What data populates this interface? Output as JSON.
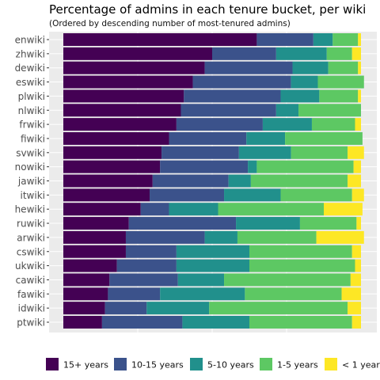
{
  "chart_data": {
    "type": "bar",
    "orientation": "horizontal",
    "stacked": true,
    "title": "Percentage of admins in each tenure bucket, per wiki",
    "subtitle": "(Ordered by descending number of most-tenured admins)",
    "xlabel": "",
    "ylabel": "",
    "xlim": [
      0,
      1
    ],
    "grid": true,
    "legend_position": "bottom",
    "categories": [
      "enwiki",
      "zhwiki",
      "dewiki",
      "eswiki",
      "plwiki",
      "nlwiki",
      "frwiki",
      "fiwiki",
      "svwiki",
      "nowiki",
      "jawiki",
      "itwiki",
      "hewiki",
      "ruwiki",
      "arwiki",
      "cswiki",
      "ukwiki",
      "cawiki",
      "fawiki",
      "idwiki",
      "ptwiki"
    ],
    "series": [
      {
        "name": "15+ years",
        "color": "#440154",
        "values": [
          0.65,
          0.5,
          0.475,
          0.435,
          0.405,
          0.395,
          0.38,
          0.355,
          0.33,
          0.325,
          0.3,
          0.29,
          0.26,
          0.22,
          0.21,
          0.21,
          0.18,
          0.155,
          0.15,
          0.14,
          0.13
        ]
      },
      {
        "name": "10-15 years",
        "color": "#3b528b",
        "values": [
          0.19,
          0.215,
          0.295,
          0.33,
          0.325,
          0.32,
          0.29,
          0.26,
          0.26,
          0.295,
          0.255,
          0.25,
          0.095,
          0.36,
          0.265,
          0.17,
          0.2,
          0.23,
          0.175,
          0.14,
          0.27
        ]
      },
      {
        "name": "5-10 years",
        "color": "#21908c",
        "values": [
          0.065,
          0.17,
          0.12,
          0.09,
          0.13,
          0.075,
          0.165,
          0.13,
          0.175,
          0.03,
          0.075,
          0.19,
          0.165,
          0.215,
          0.11,
          0.245,
          0.245,
          0.155,
          0.285,
          0.21,
          0.225
        ]
      },
      {
        "name": "1-5 years",
        "color": "#5dc863",
        "values": [
          0.085,
          0.085,
          0.1,
          0.155,
          0.13,
          0.21,
          0.145,
          0.26,
          0.19,
          0.325,
          0.325,
          0.24,
          0.355,
          0.19,
          0.265,
          0.345,
          0.355,
          0.425,
          0.325,
          0.465,
          0.345
        ]
      },
      {
        "name": "< 1 year",
        "color": "#fde725",
        "values": [
          0.01,
          0.03,
          0.01,
          0.0,
          0.01,
          0.0,
          0.02,
          0.0,
          0.055,
          0.025,
          0.045,
          0.04,
          0.13,
          0.015,
          0.16,
          0.03,
          0.02,
          0.035,
          0.065,
          0.045,
          0.03
        ]
      }
    ]
  }
}
